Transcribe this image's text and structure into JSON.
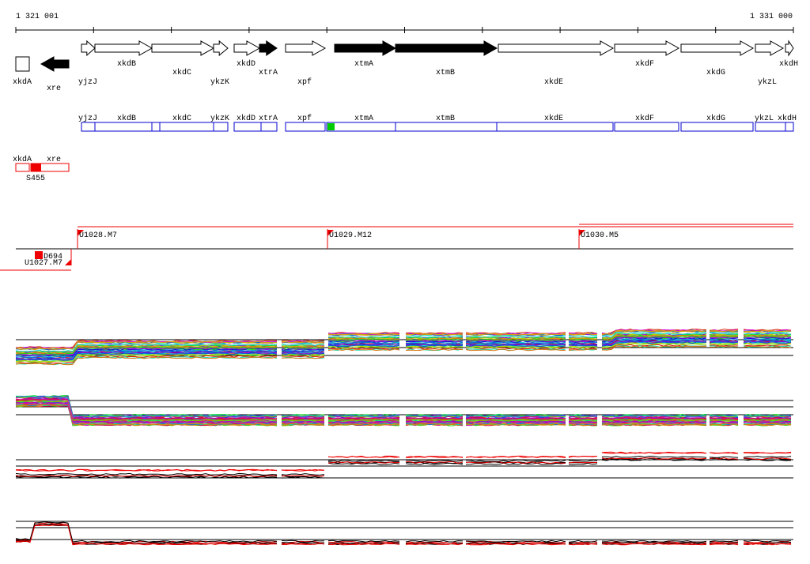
{
  "coordinates": {
    "start": "1 321 001",
    "end": "1 331 000"
  },
  "genes": [
    "xkdA",
    "xre",
    "yjzJ",
    "xkdB",
    "xkdC",
    "ykzK",
    "xkdD",
    "xtrA",
    "xpf",
    "xtmA",
    "xtmB",
    "xkdE",
    "xkdF",
    "xkdG",
    "ykzL",
    "xkdH"
  ],
  "operon_genes": [
    "yjzJ",
    "xkdB",
    "xkdC",
    "ykzK",
    "xkdD",
    "xtrA",
    "xpf",
    "xtmA",
    "xtmB",
    "xkdE",
    "xkdF",
    "xkdG",
    "ykzL",
    "xkdH"
  ],
  "features": {
    "labels": [
      "xkdA",
      "xre"
    ],
    "site": "S455"
  },
  "transcripts": [
    "U1028.M7",
    "U1029.M12",
    "U1030.M5",
    "U1027.M7"
  ],
  "markers": [
    "D694"
  ]
}
